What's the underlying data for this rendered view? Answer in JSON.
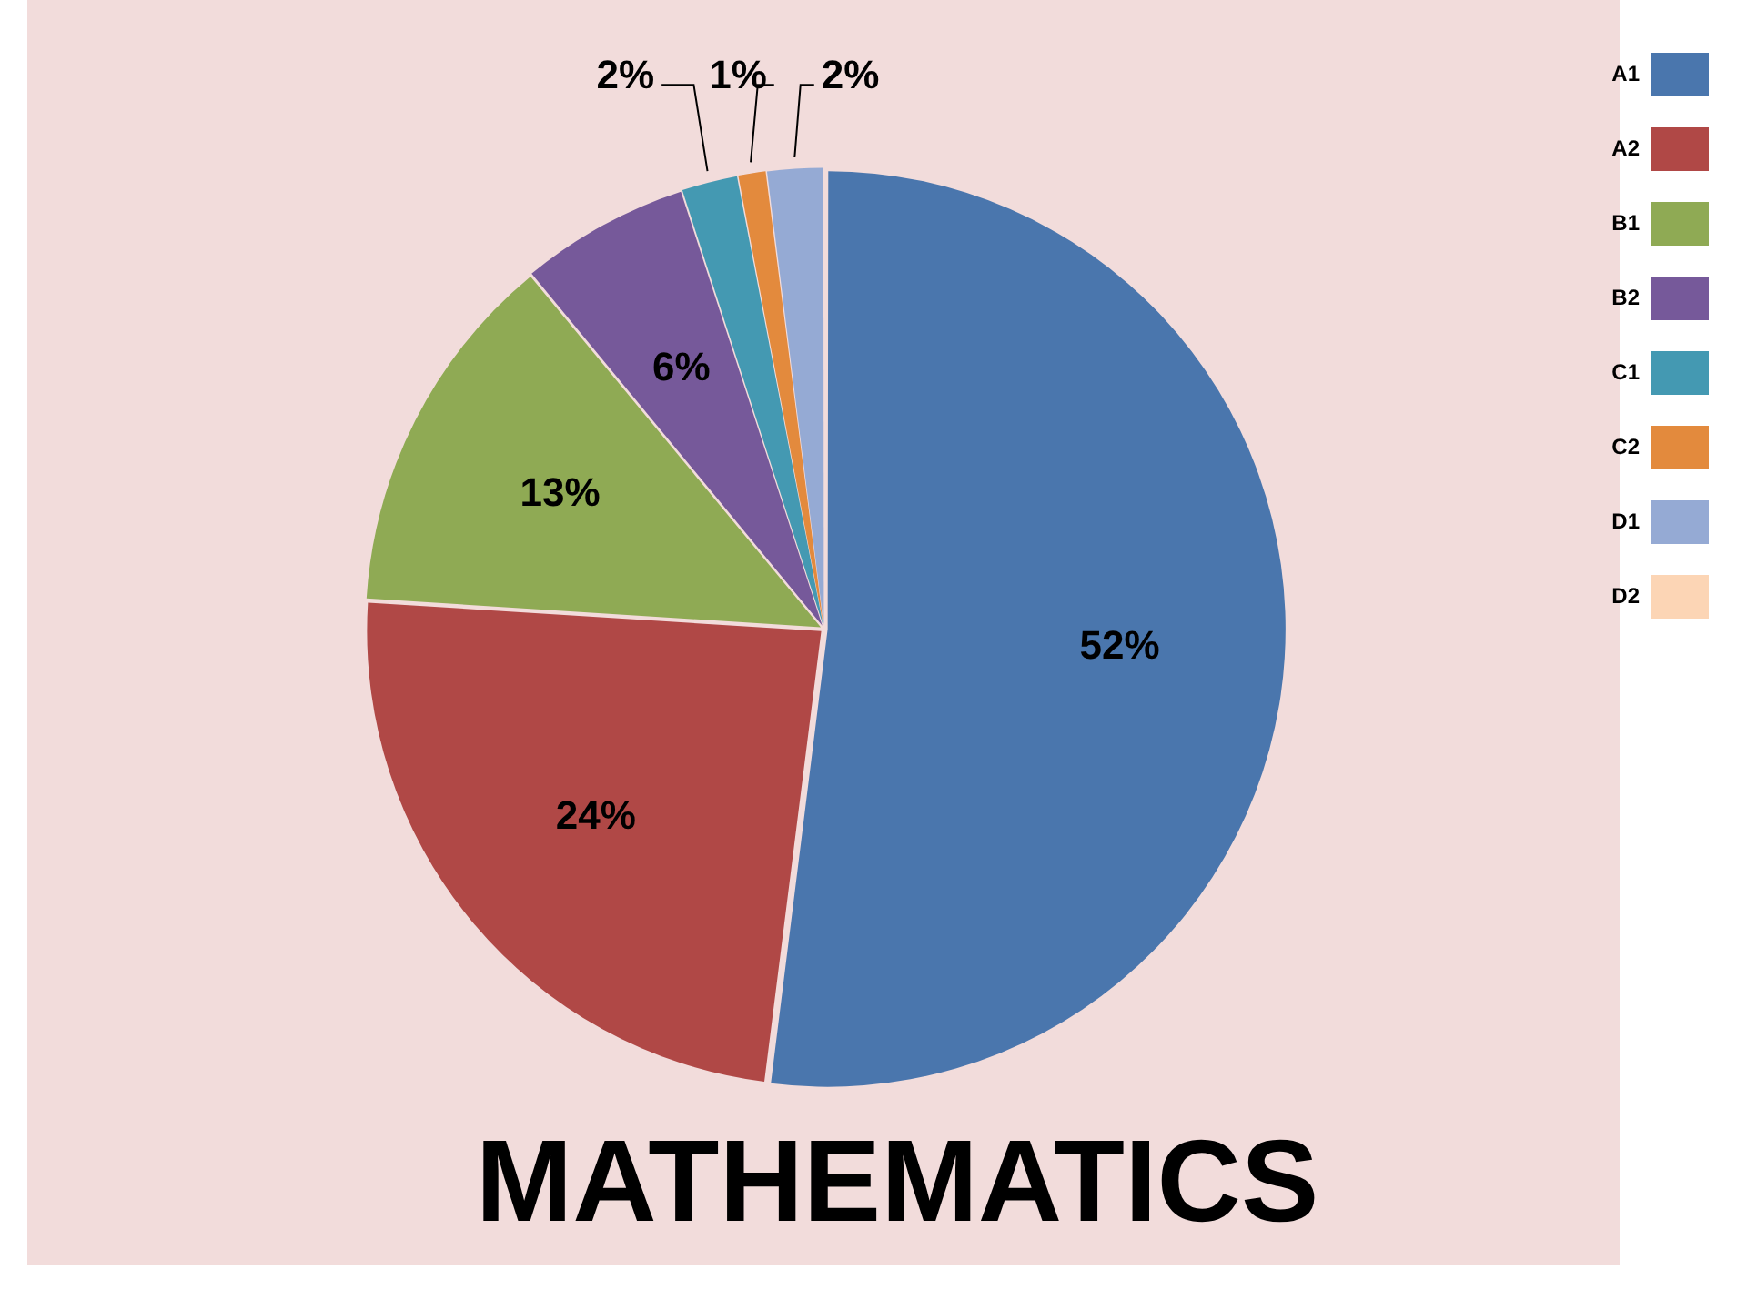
{
  "chart_data": {
    "type": "pie",
    "title": "MATHEMATICS",
    "categories": [
      "A1",
      "A2",
      "B1",
      "B2",
      "C1",
      "C2",
      "D1",
      "D2"
    ],
    "values": [
      52,
      24,
      13,
      6,
      2,
      1,
      2,
      0
    ],
    "colors": [
      "#4a76ad",
      "#b04846",
      "#8faa54",
      "#76599a",
      "#4499b2",
      "#e38a3d",
      "#95aad4",
      "#fcd5b5"
    ],
    "value_labels": [
      "52%",
      "24%",
      "13%",
      "6%",
      "2%",
      "1%",
      "2%",
      null
    ],
    "legend": "top right"
  }
}
